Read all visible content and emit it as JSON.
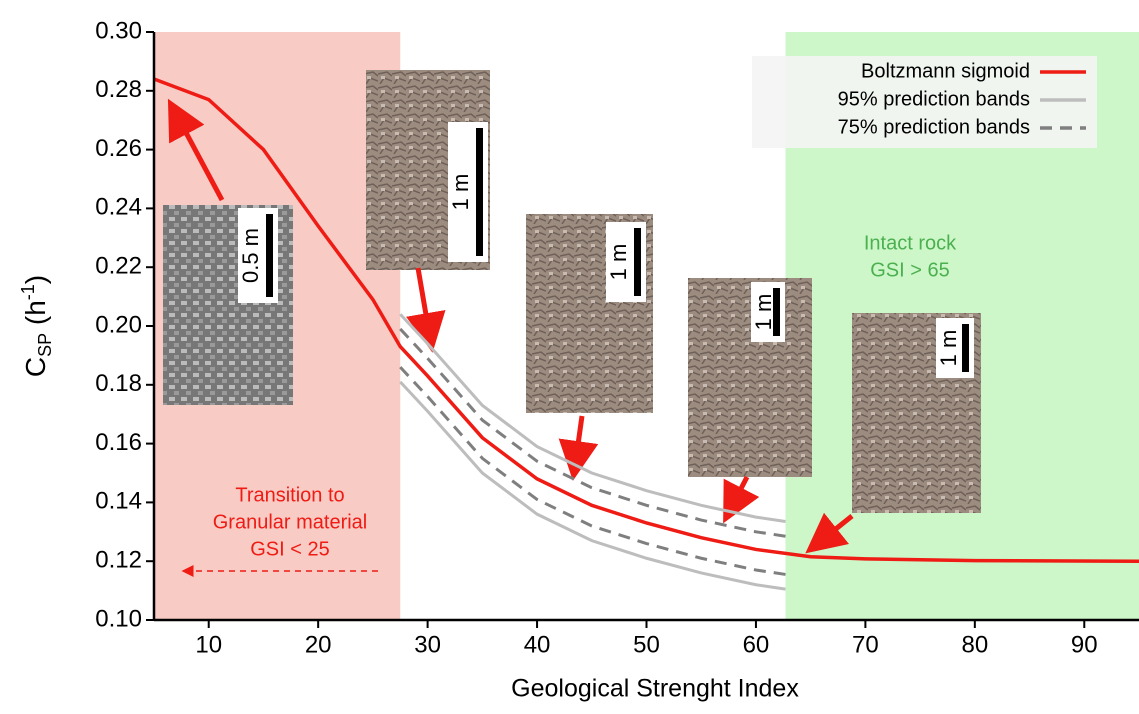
{
  "chart_data": {
    "type": "line",
    "xlabel": "Geological Strenght Index",
    "ylabel": {
      "base": "C",
      "sub": "SP",
      "mid": " (h",
      "sup": "-1",
      "end": ")"
    },
    "xlim": [
      5,
      95
    ],
    "ylim": [
      0.1,
      0.3
    ],
    "xticks": [
      10,
      20,
      30,
      40,
      50,
      60,
      70,
      80,
      90
    ],
    "yticks": [
      {
        "value": 0.1,
        "label": "0.10"
      },
      0.12,
      0.14,
      0.16,
      0.18,
      {
        "value": 0.2,
        "label": "0.20"
      },
      0.22,
      0.24,
      0.26,
      0.28,
      {
        "value": 0.3,
        "label": "0.30"
      }
    ],
    "regions": [
      {
        "xlim": [
          5,
          27.5
        ],
        "color": "#f9cbc5"
      },
      {
        "xlim": [
          62.7,
          95
        ],
        "color": "#cdf7c9"
      }
    ],
    "legend": "upper right",
    "series": [
      {
        "name": "Boltzmann sigmoid",
        "color": "#ee1c14",
        "dash": false,
        "x": [
          5,
          10,
          15,
          20,
          25,
          27.5,
          30,
          35,
          40,
          45,
          50,
          55,
          60,
          65,
          70,
          80,
          95
        ],
        "values": [
          0.284,
          0.277,
          0.26,
          0.234,
          0.209,
          0.193,
          0.183,
          0.162,
          0.148,
          0.139,
          0.133,
          0.128,
          0.124,
          0.1215,
          0.1208,
          0.1202,
          0.12
        ]
      },
      {
        "name": "95% prediction bands",
        "color": "#bdbdbd",
        "dash": false,
        "x": [
          27.5,
          30,
          35,
          40,
          45,
          50,
          55,
          60,
          62.7
        ],
        "values": [
          0.204,
          0.194,
          0.173,
          0.159,
          0.15,
          0.144,
          0.139,
          0.135,
          0.1335
        ],
        "lower": [
          0.181,
          0.171,
          0.15,
          0.136,
          0.127,
          0.121,
          0.116,
          0.112,
          0.1105
        ]
      },
      {
        "name": "75% prediction bands",
        "color": "#7f7f7f",
        "dash": true,
        "x": [
          27.5,
          30,
          35,
          40,
          45,
          50,
          55,
          60,
          62.7
        ],
        "values": [
          0.199,
          0.189,
          0.168,
          0.154,
          0.145,
          0.139,
          0.134,
          0.13,
          0.1285
        ],
        "lower": [
          0.186,
          0.176,
          0.155,
          0.141,
          0.132,
          0.126,
          0.121,
          0.117,
          0.1155
        ]
      }
    ],
    "annotations": [
      {
        "lines": [
          "Transition to",
          "Granular material",
          "GSI < 25"
        ],
        "color": "#ee1c14"
      },
      {
        "lines": [
          "Intact rock",
          "GSI > 65"
        ],
        "color": "#4cb050"
      }
    ],
    "scale_bars": [
      "0.5 m",
      "1 m",
      "1 m",
      "1 m",
      "1 m"
    ]
  }
}
